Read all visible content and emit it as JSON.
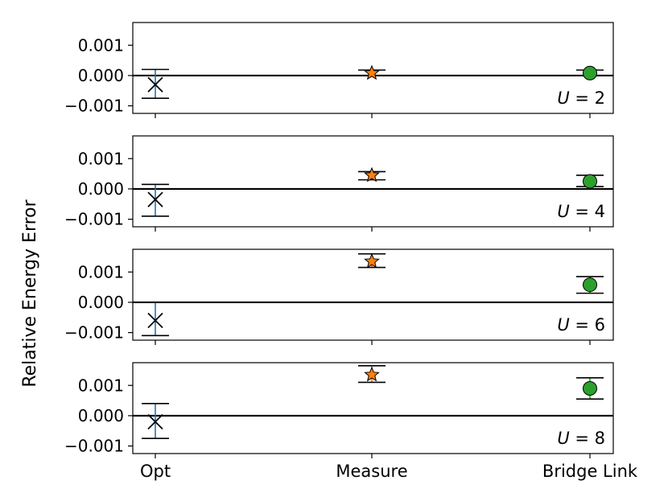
{
  "chart_data": {
    "type": "scatter",
    "ylabel": "Relative Energy Error",
    "categories": [
      "Opt",
      "Measure",
      "Bridge Link"
    ],
    "ylim": [
      -0.00125,
      0.00175
    ],
    "yticks": [
      "0.001",
      "0.000",
      "−0.001"
    ],
    "ytick_values": [
      0.001,
      0.0,
      -0.001
    ],
    "reference_line": 0.0,
    "series_styles": [
      {
        "category": "Opt",
        "marker": "x",
        "color": "#000000",
        "errcolor": "#1f77b4"
      },
      {
        "category": "Measure",
        "marker": "star",
        "color": "#ff7f0e",
        "errcolor": "#ff7f0e"
      },
      {
        "category": "Bridge Link",
        "marker": "circle",
        "color": "#2ca02c",
        "errcolor": "#2ca02c"
      }
    ],
    "panels": [
      {
        "label_var": "U",
        "label_value": "2",
        "points": [
          {
            "category": "Opt",
            "value": -0.0003,
            "err_low": -0.00075,
            "err_high": 0.0002
          },
          {
            "category": "Measure",
            "value": 8e-05,
            "err_low": 0.0,
            "err_high": 0.00018
          },
          {
            "category": "Bridge Link",
            "value": 8e-05,
            "err_low": 0.0,
            "err_high": 0.00018
          }
        ]
      },
      {
        "label_var": "U",
        "label_value": "4",
        "points": [
          {
            "category": "Opt",
            "value": -0.00035,
            "err_low": -0.0009,
            "err_high": 0.00015
          },
          {
            "category": "Measure",
            "value": 0.00045,
            "err_low": 0.0003,
            "err_high": 0.00057
          },
          {
            "category": "Bridge Link",
            "value": 0.00025,
            "err_low": 8e-05,
            "err_high": 0.00045
          }
        ]
      },
      {
        "label_var": "U",
        "label_value": "6",
        "points": [
          {
            "category": "Opt",
            "value": -0.0006,
            "err_low": -0.0011,
            "err_high": 0.0
          },
          {
            "category": "Measure",
            "value": 0.00135,
            "err_low": 0.00115,
            "err_high": 0.0016
          },
          {
            "category": "Bridge Link",
            "value": 0.00058,
            "err_low": 0.0003,
            "err_high": 0.00085
          }
        ]
      },
      {
        "label_var": "U",
        "label_value": "8",
        "points": [
          {
            "category": "Opt",
            "value": -0.0002,
            "err_low": -0.00075,
            "err_high": 0.0004
          },
          {
            "category": "Measure",
            "value": 0.00135,
            "err_low": 0.0011,
            "err_high": 0.00165
          },
          {
            "category": "Bridge Link",
            "value": 0.0009,
            "err_low": 0.00055,
            "err_high": 0.00125
          }
        ]
      }
    ]
  }
}
